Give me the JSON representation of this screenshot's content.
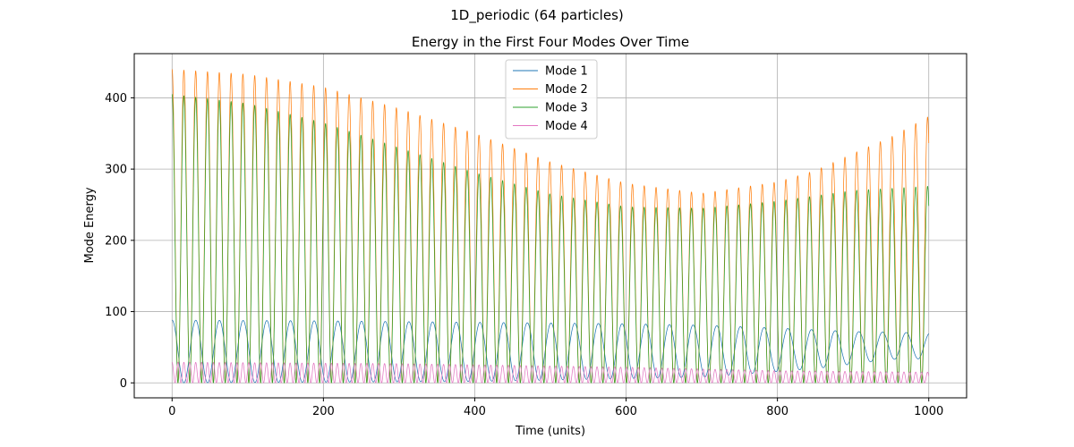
{
  "chart_data": {
    "type": "line",
    "suptitle": "1D_periodic (64 particles)",
    "title": "Energy in the First Four Modes Over Time",
    "xlabel": "Time (units)",
    "ylabel": "Mode Energy",
    "xlim": [
      -50,
      1050
    ],
    "ylim": [
      -21,
      462
    ],
    "xticks": [
      0,
      200,
      400,
      600,
      800,
      1000
    ],
    "yticks": [
      0,
      100,
      200,
      300,
      400
    ],
    "grid": true,
    "legend": {
      "position": "upper-center",
      "entries": [
        "Mode 1",
        "Mode 2",
        "Mode 3",
        "Mode 4"
      ]
    },
    "x_range": [
      0,
      1000
    ],
    "series": [
      {
        "name": "Mode 1",
        "color": "#1f77b4",
        "period": 31.3,
        "peak_envelope": [
          [
            0,
            88
          ],
          [
            200,
            87
          ],
          [
            400,
            85
          ],
          [
            600,
            83
          ],
          [
            700,
            81
          ],
          [
            800,
            77
          ],
          [
            900,
            72
          ],
          [
            1000,
            70
          ]
        ],
        "trough_envelope": [
          [
            0,
            0
          ],
          [
            400,
            2
          ],
          [
            700,
            8
          ],
          [
            850,
            20
          ],
          [
            950,
            33
          ],
          [
            1000,
            34
          ]
        ]
      },
      {
        "name": "Mode 2",
        "color": "#ff7f0e",
        "period": 15.6,
        "peak_envelope": [
          [
            0,
            440
          ],
          [
            100,
            433
          ],
          [
            200,
            415
          ],
          [
            300,
            385
          ],
          [
            400,
            350
          ],
          [
            500,
            310
          ],
          [
            600,
            280
          ],
          [
            700,
            266
          ],
          [
            800,
            282
          ],
          [
            850,
            298
          ],
          [
            900,
            322
          ],
          [
            950,
            345
          ],
          [
            1000,
            374
          ]
        ],
        "trough_envelope": [
          [
            0,
            0
          ],
          [
            1000,
            0
          ]
        ]
      },
      {
        "name": "Mode 3",
        "color": "#2ca02c",
        "period": 15.6,
        "peak_envelope": [
          [
            0,
            405
          ],
          [
            100,
            392
          ],
          [
            200,
            365
          ],
          [
            300,
            330
          ],
          [
            400,
            295
          ],
          [
            500,
            265
          ],
          [
            600,
            247
          ],
          [
            700,
            245
          ],
          [
            800,
            255
          ],
          [
            900,
            270
          ],
          [
            1000,
            276
          ]
        ],
        "trough_envelope": [
          [
            0,
            0
          ],
          [
            1000,
            0
          ]
        ]
      },
      {
        "name": "Mode 4",
        "color": "#e377c2",
        "period": 7.8,
        "peak_envelope": [
          [
            0,
            29
          ],
          [
            300,
            27
          ],
          [
            600,
            22
          ],
          [
            800,
            17
          ],
          [
            1000,
            15
          ]
        ],
        "trough_envelope": [
          [
            0,
            0
          ],
          [
            1000,
            0
          ]
        ]
      }
    ]
  }
}
